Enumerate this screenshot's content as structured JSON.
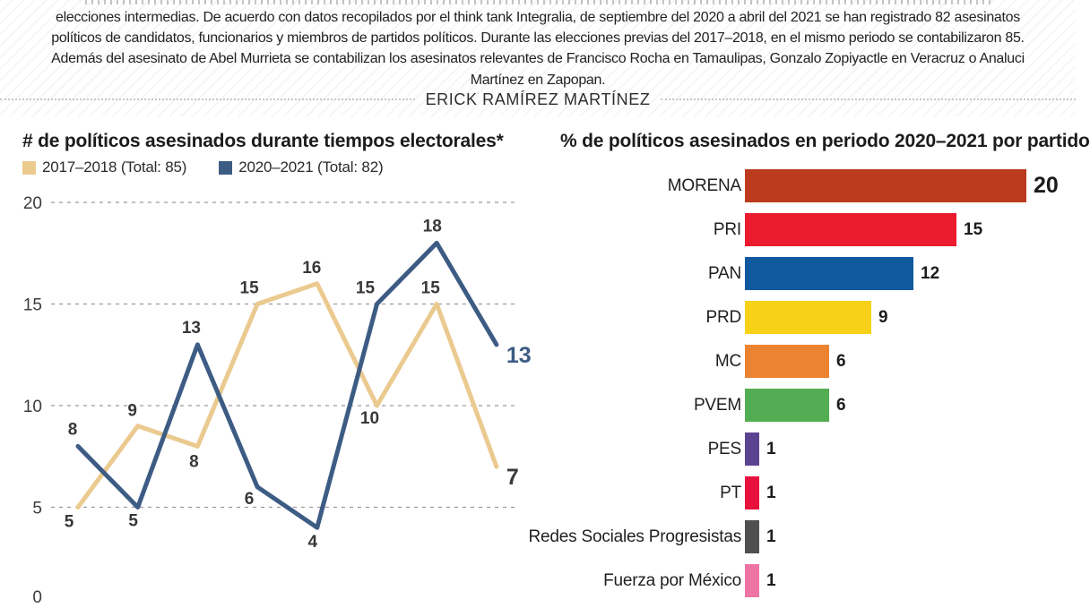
{
  "header": {
    "paragraph_lines": [
      "elecciones intermedias. De acuerdo con datos recopilados por el think tank Integralia, de septiembre del 2020 a abril del 2021 se han registrado 82 asesinatos",
      "políticos de candidatos, funcionarios y miembros de partidos políticos. Durante las elecciones previas del 2017–2018, en el mismo periodo se contabilizaron 85.",
      "Además del asesinato de Abel Murrieta se contabilizan los asesinatos relevantes de Francisco Rocha en Tamaulipas, Gonzalo Zopiyactle en Veracruz o Analuci",
      "Martínez en Zapopan."
    ],
    "byline": "ERICK RAMÍREZ MARTÍNEZ"
  },
  "chart_data": [
    {
      "type": "line",
      "title": "# de políticos asesinados durante tiempos electorales*",
      "x": [
        1,
        2,
        3,
        4,
        5,
        6,
        7,
        8
      ],
      "x_labels_visible": false,
      "ylim": [
        0,
        20
      ],
      "yticks": [
        0,
        5,
        10,
        15,
        20
      ],
      "grid": "horizontal-dashed",
      "grid_color": "#9b9b9b",
      "axis_label_color": "#3c3c3c",
      "point_label_color": "#383838",
      "legend_position": "top-left",
      "series": [
        {
          "name": "2017–2018 (Total: 85)",
          "total": 85,
          "color": "#EBCA90",
          "end_label_color": "#3a3a3a",
          "values": [
            5,
            9,
            8,
            15,
            16,
            10,
            15,
            7
          ]
        },
        {
          "name": "2020–2021 (Total: 82)",
          "total": 82,
          "color": "#3D5C84",
          "end_label_color": "#3D5C84",
          "values": [
            8,
            5,
            13,
            6,
            4,
            15,
            18,
            13
          ]
        }
      ]
    },
    {
      "type": "bar",
      "orientation": "horizontal",
      "title": "% de políticos asesinados en periodo 2020–2021 por partido",
      "xlim": [
        0,
        20
      ],
      "categories": [
        "MORENA",
        "PRI",
        "PAN",
        "PRD",
        "MC",
        "PVEM",
        "PES",
        "PT",
        "Redes Sociales Progresistas",
        "Fuerza por México"
      ],
      "values": [
        20,
        15,
        12,
        9,
        6,
        6,
        1,
        1,
        1,
        1
      ],
      "bar_colors": [
        "#BC3B1E",
        "#EC1B2D",
        "#10599F",
        "#F7D118",
        "#EC8330",
        "#53AD52",
        "#5C4391",
        "#E8123C",
        "#4F4F4F",
        "#EE74A6"
      ],
      "value_label_color": "#1c1c1c"
    }
  ]
}
